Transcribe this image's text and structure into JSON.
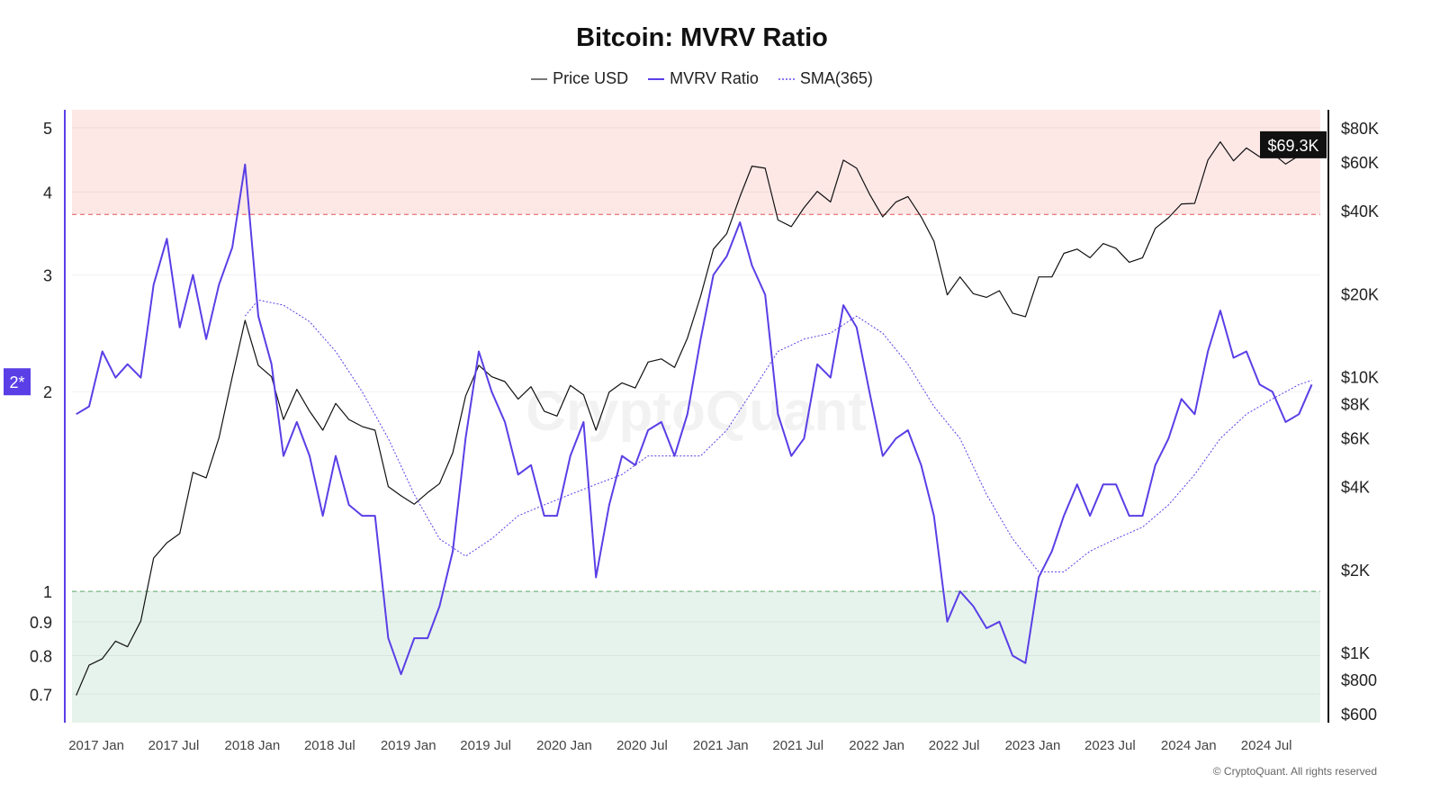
{
  "chart_data": {
    "type": "line",
    "title": "Bitcoin: MVRV Ratio",
    "legend": [
      "Price USD",
      "MVRV Ratio",
      "SMA(365)"
    ],
    "legend_placement": "top-center",
    "colors": {
      "price": "#111111",
      "mvrv": "#5a3fe6",
      "sma": "#5a3fe6",
      "upper_zone": "#fde8e6",
      "lower_zone": "#e6f3ec",
      "upper_line": "#e05555",
      "lower_line": "#55aa66"
    },
    "x_range": [
      "2016-11-05",
      "2024-11-04"
    ],
    "x_ticks": [
      "2017 Jan",
      "2017 Jul",
      "2018 Jan",
      "2018 Jul",
      "2019 Jan",
      "2019 Jul",
      "2020 Jan",
      "2020 Jul",
      "2021 Jan",
      "2021 Jul",
      "2022 Jan",
      "2022 Jul",
      "2023 Jan",
      "2023 Jul",
      "2024 Jan",
      "2024 Jul"
    ],
    "y_left": {
      "scale": "log",
      "range": [
        0.634,
        5.32
      ],
      "ticks": [
        "0.7",
        "0.8",
        "0.9",
        "1",
        "2",
        "3",
        "4",
        "5"
      ],
      "current_badge": "2*"
    },
    "y_right": {
      "scale": "log",
      "range": [
        557,
        92800
      ],
      "ticks": [
        "$600",
        "$800",
        "$1K",
        "$2K",
        "$4K",
        "$6K",
        "$8K",
        "$10K",
        "$20K",
        "$40K",
        "$60K",
        "$80K"
      ],
      "current_badge": "$69.3K"
    },
    "thresholds": {
      "upper": 3.7,
      "lower": 1
    },
    "months_start": "2016-11",
    "series": [
      {
        "name": "Price USD",
        "axis": "right",
        "values": [
          700,
          900,
          950,
          1100,
          1050,
          1300,
          2200,
          2500,
          2700,
          4500,
          4300,
          6000,
          10000,
          16000,
          11000,
          10000,
          7000,
          9000,
          7500,
          6400,
          8000,
          7000,
          6600,
          6400,
          4000,
          3700,
          3450,
          3800,
          4100,
          5300,
          8500,
          11000,
          10000,
          9600,
          8300,
          9200,
          7500,
          7200,
          9300,
          8600,
          6400,
          8800,
          9500,
          9100,
          11300,
          11600,
          10800,
          13800,
          19600,
          29000,
          33000,
          45000,
          58000,
          57000,
          37000,
          35000,
          41000,
          47000,
          43000,
          61000,
          57000,
          46000,
          38000,
          43000,
          45000,
          38000,
          31000,
          19800,
          23000,
          20000,
          19400,
          20500,
          17000,
          16500,
          23000,
          23000,
          28000,
          29000,
          27000,
          30400,
          29200,
          26000,
          27000,
          34500,
          37700,
          42300,
          42500,
          61000,
          71000,
          60600,
          67500,
          62700,
          64600,
          59000,
          63300,
          69300
        ]
      },
      {
        "name": "MVRV Ratio",
        "axis": "left",
        "values": [
          1.85,
          1.9,
          2.3,
          2.1,
          2.2,
          2.1,
          2.9,
          3.4,
          2.5,
          3.0,
          2.4,
          2.9,
          3.3,
          4.4,
          2.6,
          2.2,
          1.6,
          1.8,
          1.6,
          1.3,
          1.6,
          1.35,
          1.3,
          1.3,
          0.85,
          0.75,
          0.85,
          0.85,
          0.95,
          1.15,
          1.7,
          2.3,
          2.0,
          1.8,
          1.5,
          1.55,
          1.3,
          1.3,
          1.6,
          1.8,
          1.05,
          1.35,
          1.6,
          1.55,
          1.75,
          1.8,
          1.6,
          1.85,
          2.4,
          3.0,
          3.2,
          3.6,
          3.1,
          2.8,
          1.85,
          1.6,
          1.7,
          2.2,
          2.1,
          2.7,
          2.5,
          2.0,
          1.6,
          1.7,
          1.75,
          1.55,
          1.3,
          0.9,
          1.0,
          0.95,
          0.88,
          0.9,
          0.8,
          0.78,
          1.05,
          1.15,
          1.3,
          1.45,
          1.3,
          1.45,
          1.45,
          1.3,
          1.3,
          1.55,
          1.7,
          1.95,
          1.85,
          2.3,
          2.65,
          2.25,
          2.3,
          2.05,
          2.0,
          1.8,
          1.85,
          2.05
        ]
      },
      {
        "name": "SMA(365)",
        "axis": "left",
        "x": [
          "2017-12",
          "2018-01",
          "2018-03",
          "2018-05",
          "2018-07",
          "2018-09",
          "2018-11",
          "2019-01",
          "2019-03",
          "2019-05",
          "2019-07",
          "2019-09",
          "2019-11",
          "2020-01",
          "2020-03",
          "2020-05",
          "2020-07",
          "2020-09",
          "2020-11",
          "2021-01",
          "2021-03",
          "2021-05",
          "2021-07",
          "2021-09",
          "2021-11",
          "2022-01",
          "2022-03",
          "2022-05",
          "2022-07",
          "2022-09",
          "2022-11",
          "2023-01",
          "2023-03",
          "2023-05",
          "2023-07",
          "2023-09",
          "2023-11",
          "2024-01",
          "2024-03",
          "2024-05",
          "2024-07",
          "2024-09",
          "2024-10"
        ],
        "values": [
          2.6,
          2.75,
          2.7,
          2.55,
          2.3,
          2.0,
          1.7,
          1.4,
          1.2,
          1.13,
          1.2,
          1.3,
          1.35,
          1.4,
          1.45,
          1.5,
          1.6,
          1.6,
          1.6,
          1.75,
          2.0,
          2.3,
          2.4,
          2.45,
          2.6,
          2.45,
          2.2,
          1.9,
          1.7,
          1.4,
          1.2,
          1.07,
          1.07,
          1.15,
          1.2,
          1.25,
          1.35,
          1.5,
          1.7,
          1.85,
          1.95,
          2.05,
          2.08
        ]
      }
    ],
    "watermark": "CryptoQuant",
    "copyright": "© CryptoQuant. All rights reserved"
  }
}
